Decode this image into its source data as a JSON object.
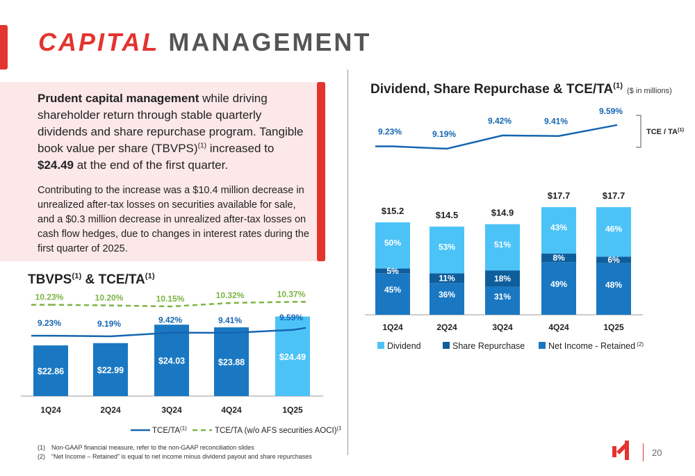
{
  "header": {
    "title_accent": "CAPITAL",
    "title_rest": "MANAGEMENT"
  },
  "summary": {
    "p1_bold1": "Prudent capital management",
    "p1_text1": " while driving shareholder return through stable quarterly dividends and share repurchase program. Tangible book value per share (TBVPS)",
    "p1_sup": "(1)",
    "p1_text2": " increased to ",
    "p1_bold2": "$24.49",
    "p1_text3": " at the end of the first quarter.",
    "p2": "Contributing to the increase was a $10.4 million decrease in unrealized after-tax losses on securities available for sale, and a $0.3 million decrease in unrealized after-tax losses on cash flow hedges, due to changes in interest rates during the first quarter of 2025."
  },
  "chart_data": [
    {
      "type": "bar",
      "title": "TBVPS",
      "title_sup1": "(1)",
      "title_mid": " & TCE/TA",
      "title_sup2": "(1)",
      "categories": [
        "1Q24",
        "2Q24",
        "3Q24",
        "4Q24",
        "1Q25"
      ],
      "series": [
        {
          "name": "TBVPS",
          "values": [
            22.86,
            22.99,
            24.03,
            23.88,
            24.49
          ],
          "labels": [
            "$22.86",
            "$22.99",
            "$24.03",
            "$23.88",
            "$24.49"
          ]
        },
        {
          "name": "TCE/TA",
          "name_sup": "(1)",
          "values": [
            9.23,
            9.19,
            9.42,
            9.41,
            9.59
          ],
          "labels": [
            "9.23%",
            "9.19%",
            "9.42%",
            "9.41%",
            "9.59%"
          ]
        },
        {
          "name": "TCE/TA (w/o AFS securities AOCI)",
          "name_sup": "(1)",
          "values": [
            10.23,
            10.2,
            10.15,
            10.32,
            10.37
          ],
          "labels": [
            "10.23%",
            "10.20%",
            "10.15%",
            "10.32%",
            "10.37%"
          ]
        }
      ],
      "colors": {
        "bar": "#1a78c2",
        "bar_last": "#4cc3f7",
        "tce": "#1565b0",
        "tce_ex": "#7cb342"
      }
    },
    {
      "type": "bar",
      "title": "Dividend, Share Repurchase & TCE/TA",
      "title_sup": "(1)",
      "subtitle": "($ in millions)",
      "categories": [
        "1Q24",
        "2Q24",
        "3Q24",
        "4Q24",
        "1Q25"
      ],
      "totals": [
        15.2,
        14.5,
        14.9,
        17.7,
        17.7
      ],
      "total_labels": [
        "$15.2",
        "$14.5",
        "$14.9",
        "$17.7",
        "$17.7"
      ],
      "series": [
        {
          "name": "Net Income - Retained",
          "name_sup": "(2)",
          "percent": [
            45,
            36,
            31,
            49,
            48
          ],
          "labels": [
            "45%",
            "36%",
            "31%",
            "49%",
            "48%"
          ]
        },
        {
          "name": "Share Repurchase",
          "percent": [
            5,
            11,
            18,
            8,
            6
          ],
          "labels": [
            "5%",
            "11%",
            "18%",
            "8%",
            "6%"
          ]
        },
        {
          "name": "Dividend",
          "percent": [
            50,
            53,
            51,
            43,
            46
          ],
          "labels": [
            "50%",
            "53%",
            "51%",
            "43%",
            "46%"
          ]
        }
      ],
      "line": {
        "name": "TCE / TA",
        "name_sup": "(1)",
        "values": [
          9.23,
          9.19,
          9.42,
          9.41,
          9.59
        ],
        "labels": [
          "9.23%",
          "9.19%",
          "9.42%",
          "9.41%",
          "9.59%"
        ]
      },
      "colors": {
        "dividend": "#4cc3f7",
        "repurchase": "#0f5e9c",
        "retained": "#1a78c2",
        "line": "#1565b0"
      }
    }
  ],
  "footnotes": [
    {
      "num": "(1)",
      "text": "Non-GAAP financial measure, refer to the non-GAAP reconciliation slides"
    },
    {
      "num": "(2)",
      "text": "“Net Income – Retained” is equal to net income minus dividend payout and share repurchases"
    }
  ],
  "page_number": "20"
}
